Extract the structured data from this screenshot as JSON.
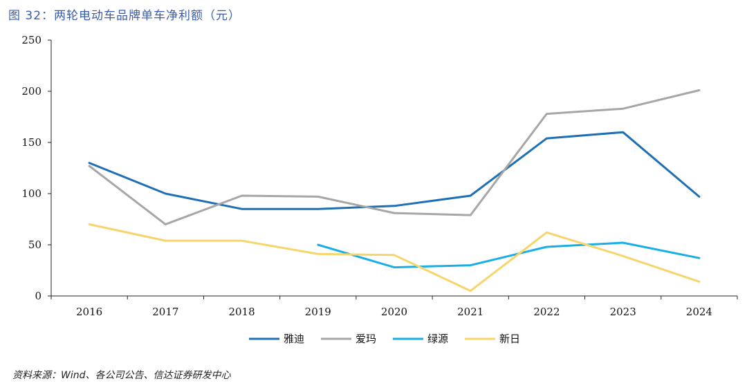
{
  "figure": {
    "title": "图 32：两轮电动车品牌单车净利额（元）",
    "source": "资料来源：Wind、各公司公告、信达证券研发中心"
  },
  "chart_data": {
    "type": "line",
    "title": "两轮电动车品牌单车净利额（元）",
    "xlabel": "",
    "ylabel": "",
    "categories": [
      "2016",
      "2017",
      "2018",
      "2019",
      "2020",
      "2021",
      "2022",
      "2023",
      "2024"
    ],
    "ylim": [
      0,
      250
    ],
    "yticks": [
      0,
      50,
      100,
      150,
      200,
      250
    ],
    "grid": false,
    "legend_position": "bottom",
    "series": [
      {
        "name": "雅迪",
        "color": "#1f6fb4",
        "values": [
          130,
          100,
          85,
          85,
          88,
          98,
          154,
          160,
          97
        ]
      },
      {
        "name": "爱玛",
        "color": "#a6a6a6",
        "values": [
          127,
          70,
          98,
          97,
          81,
          79,
          178,
          183,
          201
        ]
      },
      {
        "name": "绿源",
        "color": "#1aaee6",
        "values": [
          null,
          null,
          null,
          50,
          28,
          30,
          48,
          52,
          37
        ]
      },
      {
        "name": "新日",
        "color": "#f7d56b",
        "values": [
          70,
          54,
          54,
          41,
          40,
          5,
          62,
          39,
          14
        ]
      }
    ]
  }
}
